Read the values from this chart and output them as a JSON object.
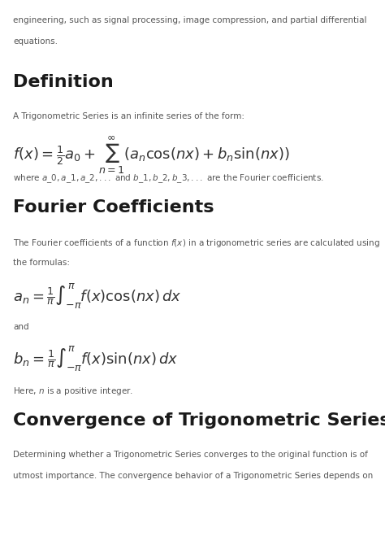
{
  "bg_color": "#ffffff",
  "text_color": "#333333",
  "heading_color": "#1a1a1a",
  "intro_text": "engineering, such as signal processing, image compression, and partial differential\nequations.",
  "section1_title": "Definition",
  "section1_body": "A Trigonometric Series is an infinite series of the form:",
  "section1_formula": "f(x) = \\frac{1}{2}a_0 + \\sum_{n=1}^{\\infty} (a_n \\cos(nx) + b_n \\sin(nx))",
  "section1_note": "where $a\\_0, a\\_1, a\\_2, ...$ and $b\\_1, b\\_2, b\\_3, ...$ are the Fourier coefficients.",
  "section2_title": "Fourier Coefficients",
  "section2_body": "The Fourier coefficients of a function $f(x)$ in a trigonometric series are calculated using\nthe formulas:",
  "section2_formula_an": "a_n = \\frac{1}{\\pi} \\int_{-\\pi}^{\\pi} f(x) \\cos(nx)\\,dx",
  "section2_and": "and",
  "section2_formula_bn": "b_n = \\frac{1}{\\pi} \\int_{-\\pi}^{\\pi} f(x) \\sin(nx)\\,dx",
  "section2_note": "Here, $n$ is a positive integer.",
  "section3_title": "Convergence of Trigonometric Series",
  "section3_body": "Determining whether a Trigonometric Series converges to the original function is of\nutmost importance. The convergence behavior of a Trigonometric Series depends on"
}
